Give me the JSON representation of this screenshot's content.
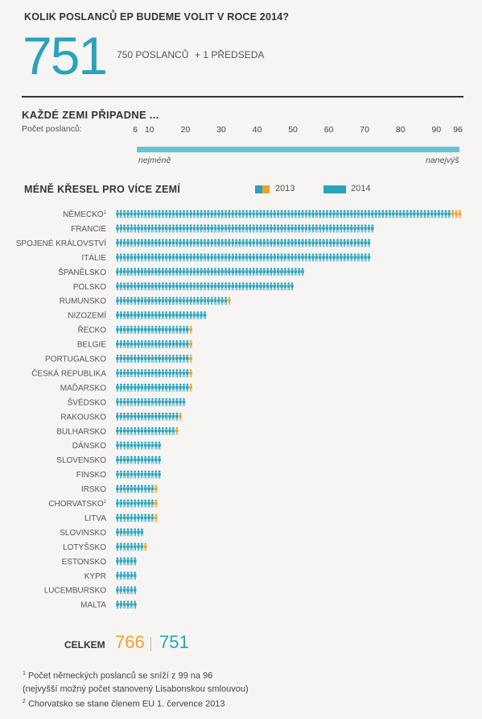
{
  "header": {
    "title": "KOLIK POSLANCŮ EP BUDEME VOLIT V ROCE 2014?",
    "big_number": "751",
    "sub_members": "750 POSLANCŮ",
    "sub_president": "+ 1 PŘEDSEDA"
  },
  "range_section": {
    "title": "KAŽDÉ ZEMI PŘIPADNE ...",
    "count_label": "Počet poslanců:",
    "ticks": [
      6,
      10,
      20,
      30,
      40,
      50,
      60,
      70,
      80,
      90,
      96
    ],
    "min_label": "nejméně",
    "max_label": "nanejvýš"
  },
  "legend": {
    "label_2013": "2013",
    "label_2014": "2014"
  },
  "colors": {
    "seat_2014": "#2aa3bb",
    "seat_lost": "#efa12a",
    "range_bar": "#64c4d4"
  },
  "icon": "person-icon",
  "totals": {
    "label": "CELKEM",
    "value_2013": "766",
    "value_2014": "751"
  },
  "footnotes": {
    "note1": "Počet německých poslanců se sníží z 99 na 96",
    "note1b": "(nejvyšší možný počet stanovený Lisabonskou smlouvou)",
    "note2": "Chorvatsko se stane členem EU 1. července 2013",
    "marker1": "1",
    "marker2": "2"
  },
  "chart_data": {
    "type": "bar",
    "title": "MÉNĚ KŘESEL PRO VÍCE ZEMÍ",
    "xlim": [
      0,
      99
    ],
    "categories": [
      "NĚMECKO",
      "FRANCIE",
      "SPOJENÉ KRÁLOVSTVÍ",
      "ITÁLIE",
      "ŠPANĚLSKO",
      "POLSKO",
      "RUMUNSKO",
      "NIZOZEMÍ",
      "ŘECKO",
      "BELGIE",
      "PORTUGALSKO",
      "ČESKÁ REPUBLIKA",
      "MAĎARSKO",
      "ŠVÉDSKO",
      "RAKOUSKO",
      "BULHARSKO",
      "DÁNSKO",
      "SLOVENSKO",
      "FINSKO",
      "IRSKO",
      "CHORVATSKO",
      "LITVA",
      "SLOVINSKO",
      "LOTYŠSKO",
      "ESTONSKO",
      "KYPR",
      "LUCEMBURSKO",
      "MALTA"
    ],
    "footnote_marks": {
      "NĚMECKO": "1",
      "CHORVATSKO": "2"
    },
    "series": [
      {
        "name": "2013",
        "values": [
          99,
          74,
          73,
          73,
          54,
          51,
          33,
          26,
          22,
          22,
          22,
          22,
          22,
          20,
          19,
          18,
          13,
          13,
          13,
          12,
          12,
          12,
          8,
          9,
          6,
          6,
          6,
          6
        ]
      },
      {
        "name": "2014",
        "values": [
          96,
          74,
          73,
          73,
          54,
          51,
          32,
          26,
          21,
          21,
          21,
          21,
          21,
          20,
          18,
          17,
          13,
          13,
          13,
          11,
          11,
          11,
          8,
          8,
          6,
          6,
          6,
          6
        ]
      }
    ]
  }
}
